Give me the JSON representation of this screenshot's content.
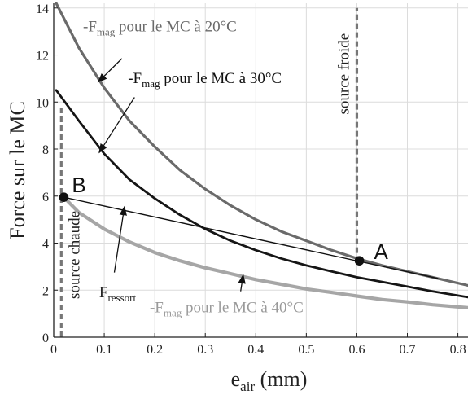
{
  "chart_data": {
    "type": "line",
    "title": "",
    "xlabel": "e",
    "xlabel_sub": "air",
    "xlabel_unit": " (mm)",
    "ylabel": "Force sur le MC",
    "xlim": [
      0,
      0.82
    ],
    "ylim": [
      0,
      14.2
    ],
    "xticks": [
      0,
      0.1,
      0.2,
      0.3,
      0.4,
      0.5,
      0.6,
      0.7,
      0.8
    ],
    "xtick_labels": [
      "0",
      "0.1",
      "0.2",
      "0.3",
      "0.4",
      "0.5",
      "0.6",
      "0.7",
      "0.8"
    ],
    "yticks": [
      0,
      2,
      4,
      6,
      8,
      10,
      12,
      14
    ],
    "ytick_labels": [
      "0",
      "2",
      "4",
      "6",
      "8",
      "10",
      "12",
      "14"
    ],
    "grid": true,
    "colors": {
      "mc20": "#6a6a6a",
      "mc30": "#151515",
      "mc40": "#a6a6a6",
      "spring": "#111111",
      "dash": "#777777"
    },
    "series": [
      {
        "key": "mc20",
        "x": [
          0.005,
          0.05,
          0.1,
          0.15,
          0.2,
          0.25,
          0.3,
          0.35,
          0.4,
          0.45,
          0.5,
          0.55,
          0.6,
          0.65,
          0.7,
          0.75,
          0.82
        ],
        "y": [
          14.2,
          12.3,
          10.6,
          9.2,
          8.1,
          7.1,
          6.3,
          5.6,
          5.0,
          4.5,
          4.1,
          3.7,
          3.35,
          3.05,
          2.8,
          2.55,
          2.2
        ]
      },
      {
        "key": "mc30",
        "x": [
          0.005,
          0.05,
          0.1,
          0.15,
          0.2,
          0.25,
          0.3,
          0.35,
          0.4,
          0.45,
          0.5,
          0.55,
          0.6,
          0.65,
          0.7,
          0.75,
          0.82
        ],
        "y": [
          10.5,
          9.2,
          7.8,
          6.7,
          5.9,
          5.2,
          4.6,
          4.1,
          3.7,
          3.35,
          3.05,
          2.8,
          2.55,
          2.35,
          2.15,
          1.95,
          1.7
        ]
      },
      {
        "key": "mc40",
        "x": [
          0.02,
          0.05,
          0.1,
          0.15,
          0.2,
          0.25,
          0.3,
          0.35,
          0.4,
          0.45,
          0.5,
          0.55,
          0.6,
          0.65,
          0.7,
          0.75,
          0.82
        ],
        "y": [
          5.95,
          5.3,
          4.6,
          4.05,
          3.6,
          3.25,
          2.95,
          2.7,
          2.45,
          2.25,
          2.05,
          1.9,
          1.75,
          1.6,
          1.5,
          1.38,
          1.25
        ]
      },
      {
        "key": "spring",
        "x": [
          0.02,
          0.76
        ],
        "y": [
          5.95,
          2.5
        ]
      }
    ],
    "vlines": [
      {
        "key": "chaude",
        "x": 0.015,
        "y": [
          0,
          9.8
        ],
        "label": "source chaude"
      },
      {
        "key": "froide",
        "x": 0.6,
        "y": [
          3.2,
          14.0
        ],
        "label": "source froide"
      }
    ],
    "points": [
      {
        "label": "B",
        "x": 0.02,
        "y": 5.95
      },
      {
        "label": "A",
        "x": 0.605,
        "y": 3.25
      }
    ],
    "annotations": [
      {
        "key": "ann-mc20",
        "pre": "-F",
        "sub": "mag",
        "post": " pour le MC à 20°C",
        "text_at": [
          0.058,
          13.0
        ],
        "arrow_from": [
          0.135,
          11.85
        ],
        "arrow_to": [
          0.088,
          10.85
        ]
      },
      {
        "key": "ann-mc30",
        "pre": "-F",
        "sub": "mag",
        "post": " pour le MC à 30°C",
        "text_at": [
          0.147,
          10.8
        ],
        "arrow_from": [
          0.16,
          10.2
        ],
        "arrow_to": [
          0.09,
          7.85
        ]
      },
      {
        "key": "ann-mc40",
        "pre": "-F",
        "sub": "mag",
        "post": " pour le MC à 40°C",
        "text_at": [
          0.19,
          1.05
        ],
        "arrow_from": [
          0.37,
          1.95
        ],
        "arrow_to": [
          0.375,
          2.65
        ]
      },
      {
        "key": "ann-spring",
        "pre": "F",
        "sub": "ressort",
        "post": "",
        "text_at": [
          0.09,
          1.7
        ],
        "arrow_from": [
          0.12,
          2.75
        ],
        "arrow_to": [
          0.14,
          5.55
        ]
      }
    ]
  }
}
